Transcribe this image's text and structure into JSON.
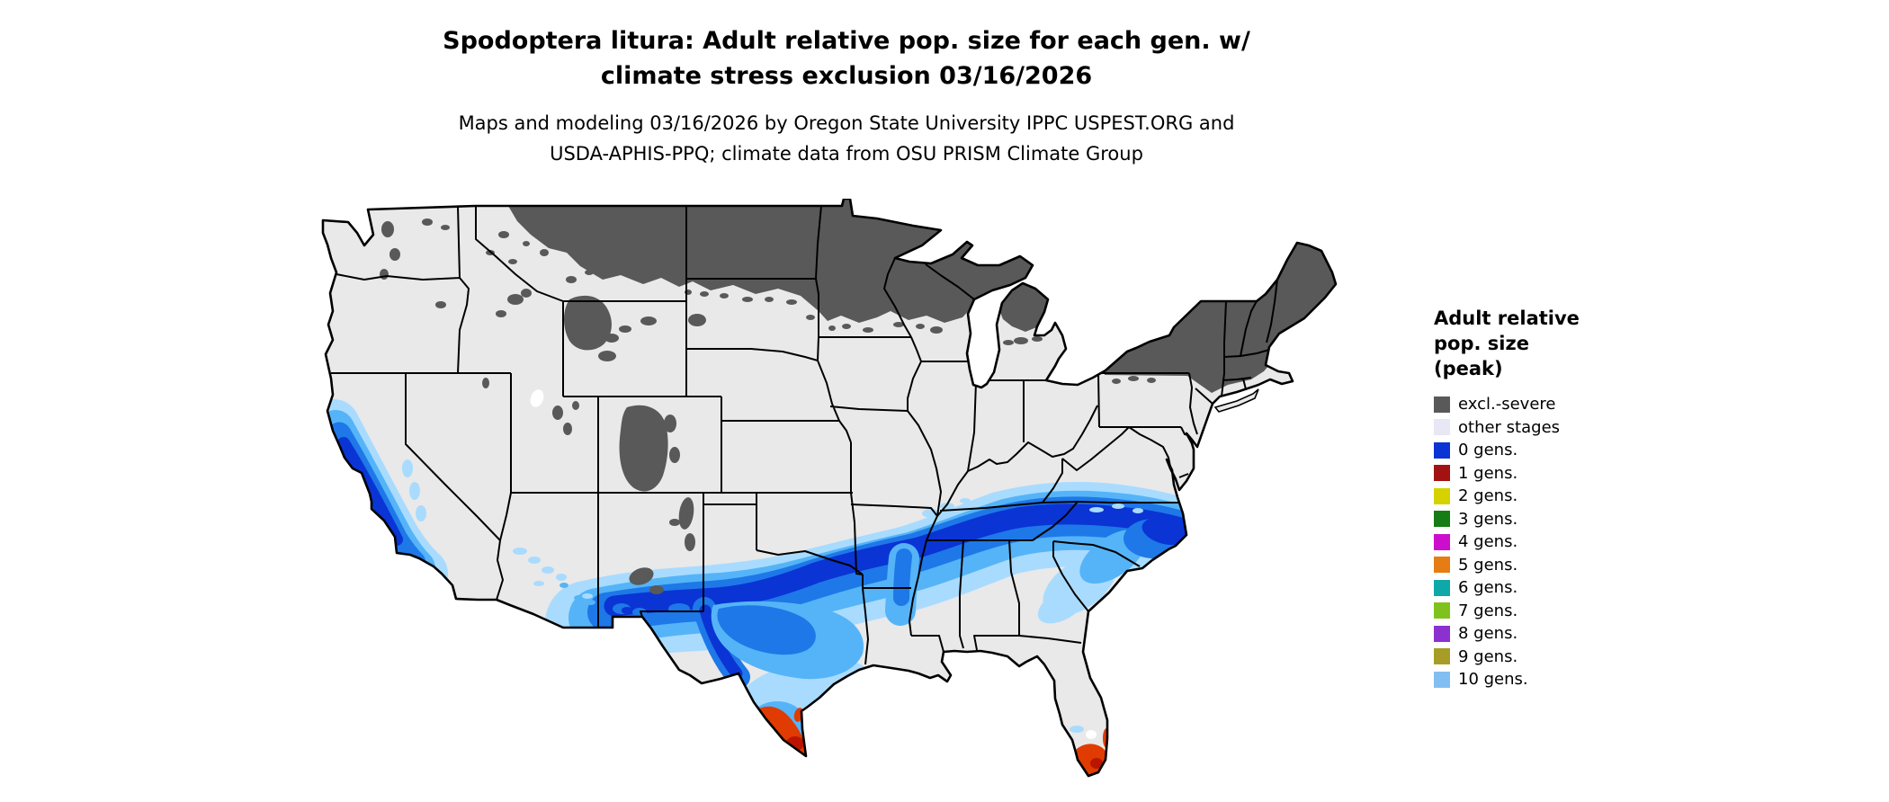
{
  "title": {
    "line1": "Spodoptera litura: Adult relative pop. size for each gen. w/",
    "line2": "climate stress exclusion 03/16/2026"
  },
  "subtitle": {
    "line1": "Maps and modeling 03/16/2026 by Oregon State University IPPC USPEST.ORG and",
    "line2": "USDA-APHIS-PPQ; climate data from OSU PRISM Climate Group"
  },
  "legend": {
    "title_lines": [
      "Adult relative",
      "pop. size",
      "(peak)"
    ],
    "items": [
      {
        "label": "excl.-severe",
        "color": "#595959"
      },
      {
        "label": "other stages",
        "color": "#e8e8f4"
      },
      {
        "label": "0 gens.",
        "color": "#0b34d4"
      },
      {
        "label": "1 gens.",
        "color": "#a31212"
      },
      {
        "label": "2 gens.",
        "color": "#d6d200"
      },
      {
        "label": "3 gens.",
        "color": "#167c16"
      },
      {
        "label": "4 gens.",
        "color": "#cc0ecc"
      },
      {
        "label": "5 gens.",
        "color": "#e57d14"
      },
      {
        "label": "6 gens.",
        "color": "#0fa8a8"
      },
      {
        "label": "7 gens.",
        "color": "#80c21d"
      },
      {
        "label": "8 gens.",
        "color": "#8c30d0"
      },
      {
        "label": "9 gens.",
        "color": "#a79d26"
      },
      {
        "label": "10 gens.",
        "color": "#82bef2"
      }
    ]
  },
  "map": {
    "region_colors": {
      "excluded": "#595959",
      "other_stages": "#e9e9e9",
      "gen0_core": "#0b34d4",
      "blue_mid": "#1e78e8",
      "blue_light": "#55b4f7",
      "blue_pale": "#a9dbff",
      "hotspot": "#e03b00",
      "hotspot_core": "#bb1500",
      "water": "#ffffff",
      "border": "#000000"
    }
  }
}
